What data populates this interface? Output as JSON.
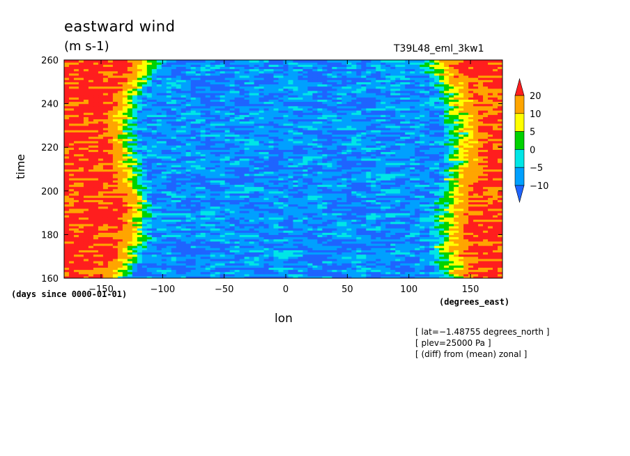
{
  "chart_data": {
    "type": "heatmap",
    "title": "eastward wind",
    "units": "(m s-1)",
    "experiment": "T39L48_eml_3kw1",
    "xlabel": "lon",
    "x_units": "(degrees_east)",
    "ylabel": "time",
    "y_units": "(days since 0000-01-01)",
    "xlim": [
      -180,
      176
    ],
    "ylim": [
      160,
      260
    ],
    "x_ticks": [
      -150,
      -100,
      -50,
      0,
      50,
      100,
      150
    ],
    "y_ticks": [
      160,
      180,
      200,
      220,
      240,
      260
    ],
    "x_tick_labels": [
      "−150",
      "−100",
      "−50",
      "0",
      "50",
      "100",
      "150"
    ],
    "y_tick_labels": [
      "160",
      "180",
      "200",
      "220",
      "240",
      "260"
    ],
    "colorbar": {
      "levels": [
        -10,
        -5,
        0,
        5,
        10,
        20
      ],
      "labels": [
        "−10",
        "−5",
        "0",
        "5",
        "10",
        "20"
      ],
      "colors": [
        "#1e64ff",
        "#00a0ff",
        "#00e6e6",
        "#00d200",
        "#ffff00",
        "#ffa500",
        "#ff1e1e"
      ]
    },
    "annotations": [
      "[ lat=−1.48755 degrees_north ]",
      "[ plev=25000 Pa ]",
      "[ (diff) from (mean) zonal ]"
    ],
    "pattern": "Westerly (positive, red/orange) anomalies near the western edge (lon < -110) and eastern edge (lon > 110); easterly (negative, blue) anomalies dominate lon -100 to 100, with eastward-tilting bands over time."
  }
}
